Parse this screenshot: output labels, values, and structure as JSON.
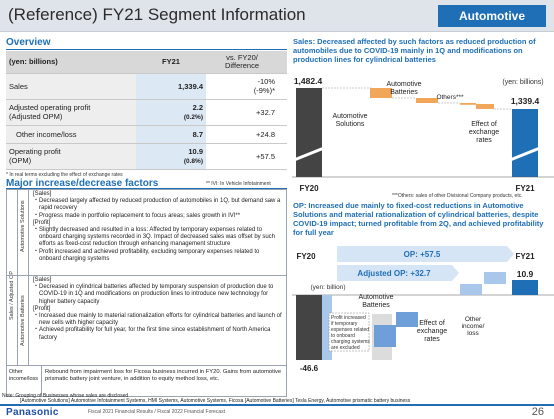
{
  "header": {
    "title": "(Reference) FY21 Segment Information",
    "segment": "Automotive",
    "accent": "#1f6fb6"
  },
  "overview": {
    "title": "Overview",
    "columns": [
      "(yen: billions)",
      "FY21",
      "vs. FY20/ Difference"
    ],
    "rows": [
      {
        "label": "Sales",
        "sub": "",
        "fy21": "1,339.4",
        "fy21_sub": "",
        "diff": "-10%",
        "diff_sub": "(-9%)*"
      },
      {
        "label": "Adjusted operating profit",
        "sub": "(Adjusted OPM)",
        "fy21": "2.2",
        "fy21_sub": "(0.2%)",
        "diff": "+32.7",
        "diff_sub": ""
      },
      {
        "label": "Other income/loss",
        "sub": "",
        "fy21": "8.7",
        "fy21_sub": "",
        "diff": "+24.8",
        "diff_sub": ""
      },
      {
        "label": "Operating profit",
        "sub": "(OPM)",
        "fy21": "10.9",
        "fy21_sub": "(0.8%)",
        "diff": "+57.5",
        "diff_sub": ""
      }
    ],
    "footnote": "* In real terms excluding the effect of exchange rates"
  },
  "factors": {
    "title": "Major increase/decrease factors",
    "ivi_note": "** IVI: In Vehicle Infotainment",
    "group_label": "Sales / Adjusted OP",
    "solutions": {
      "label": "Automotive Solutions",
      "lines": [
        "[Sales]",
        "・Decreased largely affected by reduced production of automobiles in 1Q, but demand saw a rapid recovery",
        "・Progress made in portfolio replacement to focus areas; sales growth in IVI**",
        "[Profit]",
        "・Slightly decreased and resulted in a loss: Affected by temporary expenses related to onboard charging systems recorded in 3Q. Impact of decreased sales was offset by such efforts as fixed-cost reduction through enhancing management structure",
        "・Profit increased and achieved profitability, excluding temporary expenses related to onboard charging systems"
      ]
    },
    "batteries": {
      "label": "Automotive Batteries",
      "lines": [
        "[Sales]",
        "・Decreased in cylindrical batteries affected by temporary suspension of production due to COVID-19 in 1Q and modifications on production lines to introduce new technology for higher battery capacity",
        "[Profit]",
        "・Increased due mainly to material rationalization efforts for cylindrical batteries and launch of new cells with higher capacity",
        "・Achieved profitability for full year, for the first time since establishment of North America factory"
      ]
    },
    "other": {
      "label": "Other income/loss",
      "text": "Rebound from impairment loss for Ficosa business incurred in FY20. Gains from automotive prismatic battery joint venture, in addition to equity method loss, etc."
    }
  },
  "note": {
    "line1": "Note: Grouping of Businesses whose sales are disclosed",
    "line2": "[Automotive Solutions] Automotive Infotainment Systems, HMI Systems, Automotive Systems, Ficosa [Automotive Batteries] Tesla Energy, Automotive prismatic battery business"
  },
  "sales_chart": {
    "title": "Sales: Decreased affected by such factors as reduced production of automobiles due to COVID-19 mainly in 1Q and modifications on production lines for cylindrical batteries",
    "unit": "(yen: billions)",
    "fy20_value": "1,482.4",
    "fy21_value": "1,339.4",
    "steps": [
      {
        "label": "Automotive Solutions"
      },
      {
        "label": "Automotive Batteries"
      },
      {
        "label": "Others***"
      },
      {
        "label": "Effect of exchange rates"
      }
    ],
    "fy20_label": "FY20",
    "fy21_label": "FY21",
    "footnote": "***Others: sales of other Divisional Company products, etc."
  },
  "op_chart": {
    "title": "OP: Increased due mainly to fixed-cost reductions in Automotive Solutions and material rationalization of cylindrical batteries, despite COVID-19 impact; turned profitable from 2Q, and achieved profitability for full year",
    "op_arrow": "OP: +57.5",
    "adj_arrow": "Adjusted OP: +32.7",
    "unit": "(yen: billion)",
    "fy20_label": "FY20",
    "fy21_label": "FY21",
    "fy20_value": "-46.6",
    "fy21_value": "10.9",
    "batteries_label": "Automotive Batteries",
    "profit_note": "Profit increased if temporary expenses related to onboard charging systems are excluded",
    "exchange_label": "Effect of exchange rates",
    "other_label": "Other income/ loss"
  },
  "footer": {
    "brand": "Panasonic",
    "text": "Fiscal 2021 Financial Results / Fiscal 2022 Financial Forecast",
    "page": "26"
  }
}
